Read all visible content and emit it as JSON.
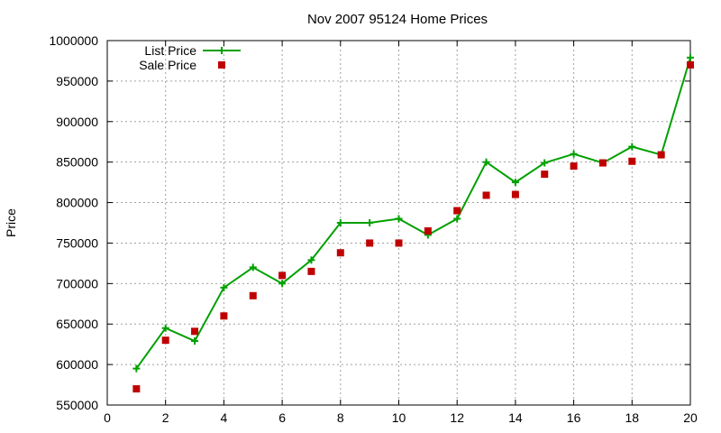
{
  "chart_data": {
    "type": "line",
    "title": "Nov 2007 95124 Home Prices",
    "xlabel": "",
    "ylabel": "Price",
    "xlim": [
      0,
      20
    ],
    "ylim": [
      550000,
      1000000
    ],
    "x_ticks": [
      0,
      2,
      4,
      6,
      8,
      10,
      12,
      14,
      16,
      18,
      20
    ],
    "y_ticks": [
      550000,
      600000,
      650000,
      700000,
      750000,
      800000,
      850000,
      900000,
      950000,
      1000000
    ],
    "grid": true,
    "legend_position": "top-left",
    "x": [
      1,
      2,
      3,
      4,
      5,
      6,
      7,
      8,
      9,
      10,
      11,
      12,
      13,
      14,
      15,
      16,
      17,
      18,
      19,
      20
    ],
    "series": [
      {
        "name": "List Price",
        "style": "linespoints",
        "color": "#00a000",
        "values": [
          595000,
          645000,
          629000,
          695000,
          720000,
          700000,
          729000,
          775000,
          775000,
          780000,
          760000,
          780000,
          850000,
          825000,
          849000,
          860000,
          849000,
          869000,
          859000,
          979000
        ]
      },
      {
        "name": "Sale Price",
        "style": "points",
        "color": "#c00000",
        "values": [
          570000,
          630000,
          641000,
          660000,
          685000,
          710000,
          715000,
          738000,
          750000,
          750000,
          765000,
          790000,
          809000,
          810000,
          835000,
          845000,
          849000,
          851000,
          859000,
          970000
        ]
      }
    ]
  }
}
